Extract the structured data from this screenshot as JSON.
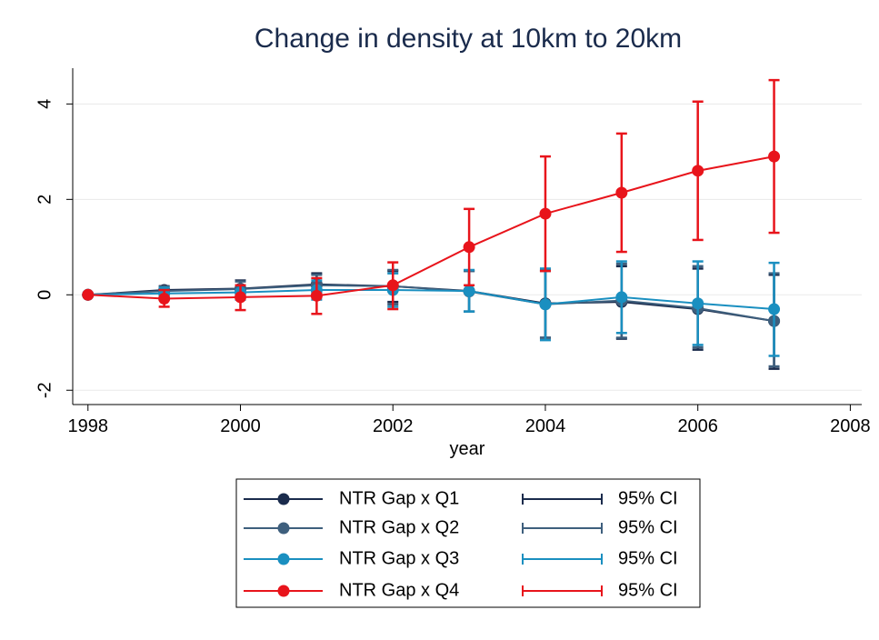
{
  "chart_data": {
    "type": "line",
    "title": "Change in density at 10km to 20km",
    "x_label": "year",
    "x": [
      1998,
      1999,
      2000,
      2001,
      2002,
      2003,
      2004,
      2005,
      2006,
      2007
    ],
    "xlim": [
      1997.8,
      2008.15
    ],
    "xticks": [
      1998,
      2000,
      2002,
      2004,
      2006,
      2008
    ],
    "ylim": [
      -2.3,
      4.75
    ],
    "yticks": [
      -2,
      0,
      2,
      4
    ],
    "grid": true,
    "series": [
      {
        "name": "NTR Gap x Q1",
        "ci_label": "95% CI",
        "color": "#1a2b4c",
        "values": [
          0,
          0.1,
          0.13,
          0.22,
          0.18,
          0.08,
          -0.18,
          -0.15,
          -0.3,
          -0.55
        ],
        "ci_low": [
          null,
          0.0,
          0.0,
          0.05,
          -0.15,
          -0.35,
          -0.9,
          -0.92,
          -1.15,
          -1.55
        ],
        "ci_high": [
          null,
          0.18,
          0.3,
          0.45,
          0.5,
          0.5,
          0.5,
          0.6,
          0.55,
          0.42
        ]
      },
      {
        "name": "NTR Gap x Q2",
        "ci_label": "95% CI",
        "color": "#3e5f7d",
        "values": [
          0,
          0.08,
          0.12,
          0.2,
          0.18,
          0.07,
          -0.2,
          -0.12,
          -0.28,
          -0.55
        ],
        "ci_low": [
          null,
          -0.02,
          -0.05,
          0.0,
          -0.2,
          -0.35,
          -0.9,
          -0.9,
          -1.1,
          -1.5
        ],
        "ci_high": [
          null,
          0.17,
          0.28,
          0.42,
          0.52,
          0.5,
          0.52,
          0.65,
          0.6,
          0.45
        ]
      },
      {
        "name": "NTR Gap x Q3",
        "ci_label": "95% CI",
        "color": "#1a8fc0",
        "values": [
          0,
          0.03,
          0.05,
          0.1,
          0.1,
          0.08,
          -0.2,
          -0.05,
          -0.18,
          -0.3
        ],
        "ci_low": [
          null,
          -0.1,
          -0.1,
          -0.1,
          -0.25,
          -0.35,
          -0.95,
          -0.8,
          -1.05,
          -1.28
        ],
        "ci_high": [
          null,
          0.15,
          0.2,
          0.3,
          0.45,
          0.52,
          0.55,
          0.7,
          0.7,
          0.67
        ]
      },
      {
        "name": "NTR Gap x Q4",
        "ci_label": "95% CI",
        "color": "#e8141b",
        "values": [
          0,
          -0.08,
          -0.05,
          -0.02,
          0.2,
          1.0,
          1.7,
          2.14,
          2.6,
          2.9
        ],
        "ci_low": [
          null,
          -0.25,
          -0.32,
          -0.4,
          -0.3,
          0.2,
          0.5,
          0.9,
          1.15,
          1.3
        ],
        "ci_high": [
          null,
          0.1,
          0.2,
          0.35,
          0.68,
          1.8,
          2.9,
          3.38,
          4.05,
          4.5
        ]
      }
    ]
  }
}
